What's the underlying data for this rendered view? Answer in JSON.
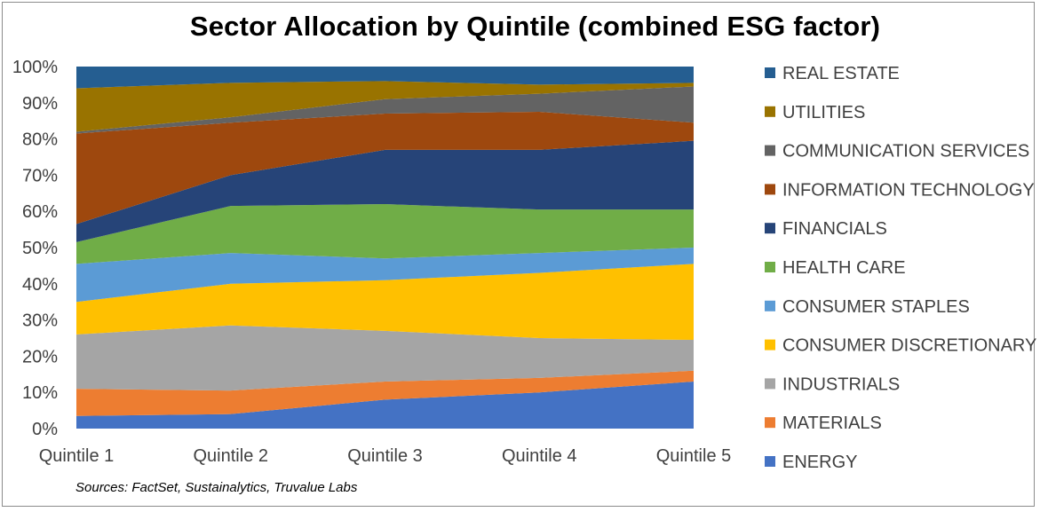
{
  "chart_data": {
    "type": "area",
    "stacked": true,
    "normalized": true,
    "title": "Sector Allocation by Quintile (combined ESG factor)",
    "source": "Sources: FactSet, Sustainalytics, Truvalue Labs",
    "categories": [
      "Quintile 1",
      "Quintile 2",
      "Quintile 3",
      "Quintile 4",
      "Quintile 5"
    ],
    "ylim": [
      0,
      100
    ],
    "yticks": [
      "0%",
      "10%",
      "20%",
      "30%",
      "40%",
      "50%",
      "60%",
      "70%",
      "80%",
      "90%",
      "100%"
    ],
    "grid": false,
    "legend_position": "right",
    "series": [
      {
        "name": "ENERGY",
        "color": "#4472C4",
        "values": [
          3.5,
          4,
          8,
          10,
          13
        ]
      },
      {
        "name": "MATERIALS",
        "color": "#ED7D31",
        "values": [
          7.5,
          6.5,
          5,
          4,
          3
        ]
      },
      {
        "name": "INDUSTRIALS",
        "color": "#A5A5A5",
        "values": [
          15,
          18,
          14,
          11,
          8.5
        ]
      },
      {
        "name": "CONSUMER DISCRETIONARY",
        "color": "#FFC000",
        "values": [
          9,
          11.5,
          14,
          18,
          21
        ]
      },
      {
        "name": "CONSUMER STAPLES",
        "color": "#5B9BD5",
        "values": [
          10.5,
          8.5,
          6,
          5.5,
          4.5
        ]
      },
      {
        "name": "HEALTH CARE",
        "color": "#70AD47",
        "values": [
          6,
          13,
          15,
          12,
          10.5
        ]
      },
      {
        "name": "FINANCIALS",
        "color": "#264478",
        "values": [
          5,
          8.5,
          15,
          16.5,
          19
        ]
      },
      {
        "name": "INFORMATION TECHNOLOGY",
        "color": "#9E480E",
        "values": [
          25,
          14.5,
          10,
          10.5,
          5
        ]
      },
      {
        "name": "COMMUNICATION SERVICES",
        "color": "#636363",
        "values": [
          0.5,
          1.5,
          4,
          5,
          10
        ]
      },
      {
        "name": "UTILITIES",
        "color": "#997300",
        "values": [
          12,
          9.5,
          5,
          2.5,
          1
        ]
      },
      {
        "name": "REAL ESTATE",
        "color": "#255E91",
        "values": [
          6,
          4.5,
          4,
          5,
          4.5
        ]
      }
    ]
  }
}
